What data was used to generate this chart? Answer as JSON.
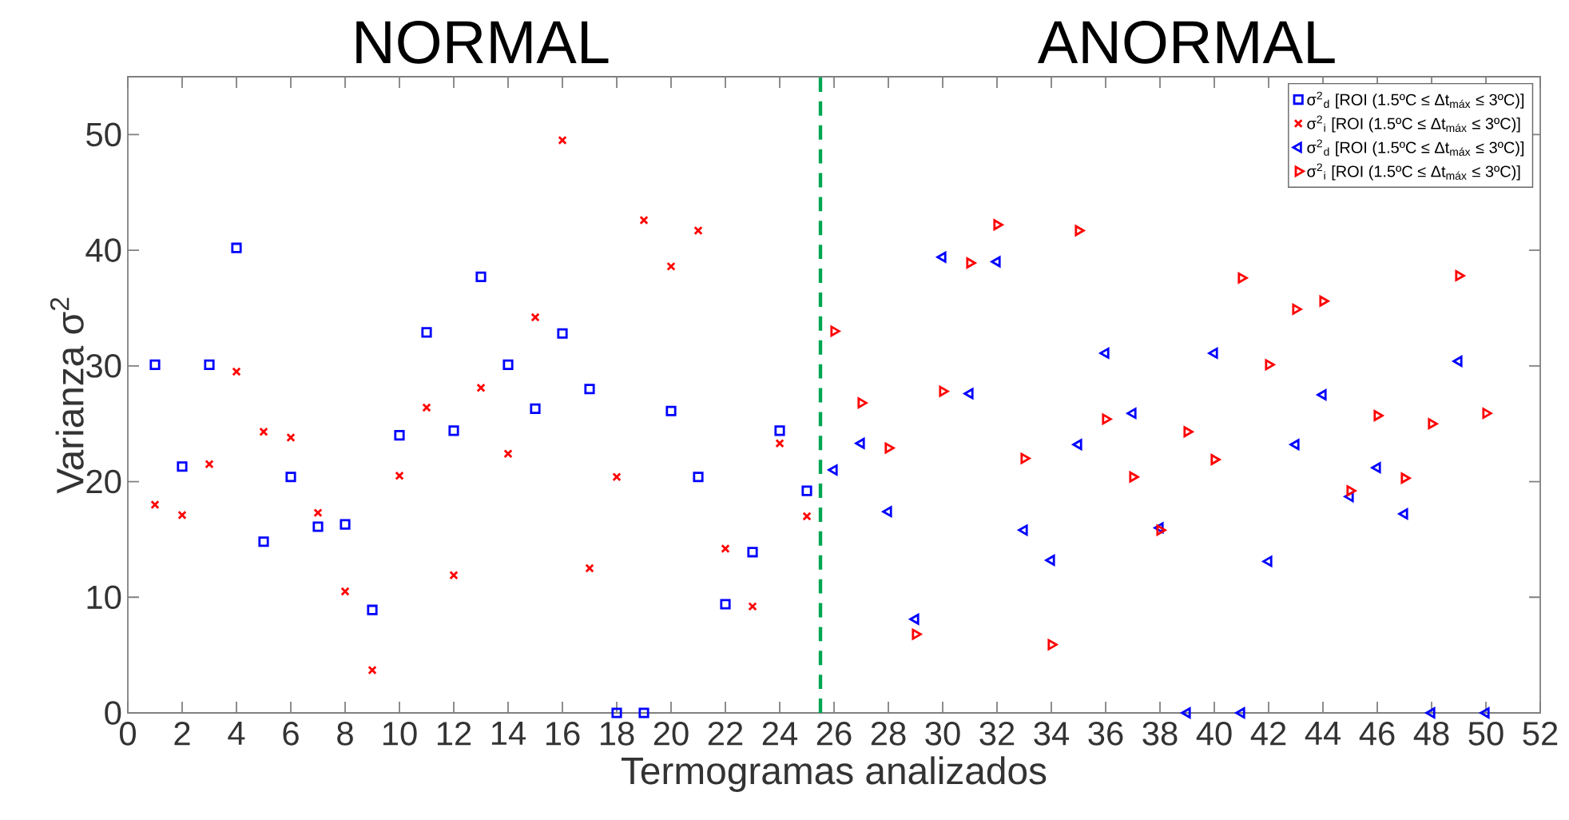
{
  "chart_data": {
    "type": "scatter",
    "annotations": [
      "NORMAL",
      "ANORMAL"
    ],
    "xlabel": "Termogramas analizados",
    "ylabel": "Varianza σ$^{2}$",
    "x": [
      1,
      2,
      3,
      4,
      5,
      6,
      7,
      8,
      9,
      10,
      11,
      12,
      13,
      14,
      15,
      16,
      17,
      18,
      19,
      20,
      21,
      22,
      23,
      24,
      25
    ],
    "xlim": [
      0,
      52
    ],
    "xticks": [
      0,
      2,
      4,
      6,
      8,
      10,
      12,
      14,
      16,
      18,
      20,
      22,
      24,
      26,
      28,
      30,
      32,
      34,
      36,
      38,
      40,
      42,
      44,
      46,
      48,
      50,
      52
    ],
    "ylim": [
      0,
      55
    ],
    "yticks": [
      0,
      10,
      20,
      30,
      40,
      50
    ],
    "grid": false,
    "legend": "top right",
    "series": [
      {
        "name": "σ$^{2}$$_{d}$ [ROI (1.5ºC ≤ Δt$_{máx}$ ≤ 3ºC)]",
        "color": "#0000ff",
        "marker": "square",
        "values": [
          30.1,
          21.3,
          30.1,
          40.2,
          14.8,
          20.4,
          16.1,
          16.3,
          8.9,
          24.0,
          32.9,
          24.4,
          37.7,
          30.1,
          26.3,
          32.8,
          28.0,
          0,
          0,
          26.1,
          20.4,
          9.4,
          13.9,
          24.4,
          19.2
        ]
      },
      {
        "name": "σ$^{2}$$_{i}$ [ROI (1.5ºC ≤ Δt$_{máx}$ ≤ 3ºC)]",
        "color": "#ff0000",
        "marker": "cross",
        "values": [
          18.0,
          17.1,
          21.5,
          29.5,
          24.3,
          23.8,
          17.3,
          10.5,
          3.7,
          20.5,
          26.4,
          11.9,
          28.1,
          22.4,
          34.2,
          49.5,
          12.5,
          20.4,
          42.6,
          38.6,
          41.7,
          14.2,
          9.2,
          23.3,
          17.0
        ]
      },
      {
        "name": "σ$^{2}$$_{d}$ [ROI (1.5ºC ≤ Δt$_{máx}$ ≤ 3ºC)]",
        "color": "#0000ff",
        "marker": "triangle-left",
        "x": [
          26,
          27,
          28,
          29,
          30,
          31,
          32,
          33,
          34,
          35,
          36,
          37,
          38,
          39,
          40,
          41,
          42,
          43,
          44,
          45,
          46,
          47,
          48,
          49,
          50
        ],
        "values": [
          21.0,
          23.3,
          17.4,
          8.1,
          39.4,
          27.6,
          39.0,
          15.8,
          13.2,
          23.2,
          31.1,
          25.9,
          16.0,
          0,
          31.1,
          0,
          13.1,
          23.2,
          27.5,
          18.7,
          21.2,
          17.2,
          0,
          30.4,
          0
        ]
      },
      {
        "name": "σ$^{2}$$_{i}$ [ROI (1.5ºC ≤ Δt$_{máx}$ ≤ 3ºC)]",
        "color": "#ff0000",
        "marker": "triangle-right",
        "x": [
          26,
          27,
          28,
          29,
          30,
          31,
          32,
          33,
          34,
          35,
          36,
          37,
          38,
          39,
          40,
          41,
          42,
          43,
          44,
          45,
          46,
          47,
          48,
          49,
          50
        ],
        "values": [
          33.0,
          26.8,
          22.9,
          6.8,
          27.8,
          38.9,
          42.2,
          22.0,
          5.9,
          41.7,
          25.4,
          20.4,
          15.8,
          24.3,
          21.9,
          37.6,
          30.1,
          34.9,
          35.6,
          19.2,
          25.7,
          20.3,
          25.0,
          37.8,
          25.9
        ]
      }
    ],
    "ref_lines": [
      {
        "axis": "x",
        "value": 25.5,
        "color": "#00a651",
        "line_style": "dashed"
      }
    ]
  }
}
